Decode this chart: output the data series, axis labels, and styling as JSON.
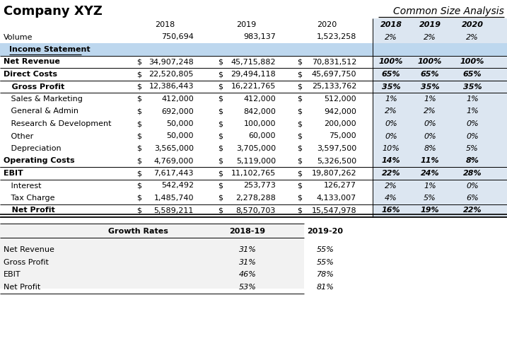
{
  "title_company": "Company XYZ",
  "title_analysis": "Common Size Analysis",
  "rows": [
    {
      "label": "Net Revenue",
      "bold": true,
      "indent": 0,
      "border_top": true,
      "border_bottom": true,
      "dollar": true,
      "v2018": "34,907,248",
      "v2019": "45,715,882",
      "v2020": "70,831,512",
      "p2018": "100%",
      "p2019": "100%",
      "p2020": "100%"
    },
    {
      "label": "Direct Costs",
      "bold": true,
      "indent": 0,
      "border_top": false,
      "border_bottom": true,
      "dollar": true,
      "v2018": "22,520,805",
      "v2019": "29,494,118",
      "v2020": "45,697,750",
      "p2018": "65%",
      "p2019": "65%",
      "p2020": "65%"
    },
    {
      "label": "   Gross Profit",
      "bold": true,
      "indent": 0,
      "border_top": true,
      "border_bottom": true,
      "dollar": true,
      "v2018": "12,386,443",
      "v2019": "16,221,765",
      "v2020": "25,133,762",
      "p2018": "35%",
      "p2019": "35%",
      "p2020": "35%"
    },
    {
      "label": "   Sales & Marketing",
      "bold": false,
      "indent": 0,
      "border_top": false,
      "border_bottom": false,
      "dollar": true,
      "v2018": "412,000",
      "v2019": "412,000",
      "v2020": "512,000",
      "p2018": "1%",
      "p2019": "1%",
      "p2020": "1%"
    },
    {
      "label": "   General & Admin",
      "bold": false,
      "indent": 0,
      "border_top": false,
      "border_bottom": false,
      "dollar": true,
      "v2018": "692,000",
      "v2019": "842,000",
      "v2020": "942,000",
      "p2018": "2%",
      "p2019": "2%",
      "p2020": "1%"
    },
    {
      "label": "   Research & Development",
      "bold": false,
      "indent": 0,
      "border_top": false,
      "border_bottom": false,
      "dollar": true,
      "v2018": "50,000",
      "v2019": "100,000",
      "v2020": "200,000",
      "p2018": "0%",
      "p2019": "0%",
      "p2020": "0%"
    },
    {
      "label": "   Other",
      "bold": false,
      "indent": 0,
      "border_top": false,
      "border_bottom": false,
      "dollar": true,
      "v2018": "50,000",
      "v2019": "60,000",
      "v2020": "75,000",
      "p2018": "0%",
      "p2019": "0%",
      "p2020": "0%"
    },
    {
      "label": "   Depreciation",
      "bold": false,
      "indent": 0,
      "border_top": false,
      "border_bottom": false,
      "dollar": true,
      "v2018": "3,565,000",
      "v2019": "3,705,000",
      "v2020": "3,597,500",
      "p2018": "10%",
      "p2019": "8%",
      "p2020": "5%"
    },
    {
      "label": "Operating Costs",
      "bold": true,
      "indent": 0,
      "border_top": false,
      "border_bottom": true,
      "dollar": true,
      "v2018": "4,769,000",
      "v2019": "5,119,000",
      "v2020": "5,326,500",
      "p2018": "14%",
      "p2019": "11%",
      "p2020": "8%"
    },
    {
      "label": "EBIT",
      "bold": true,
      "indent": 0,
      "border_top": true,
      "border_bottom": true,
      "dollar": true,
      "v2018": "7,617,443",
      "v2019": "11,102,765",
      "v2020": "19,807,262",
      "p2018": "22%",
      "p2019": "24%",
      "p2020": "28%"
    },
    {
      "label": "   Interest",
      "bold": false,
      "indent": 0,
      "border_top": false,
      "border_bottom": false,
      "dollar": true,
      "v2018": "542,492",
      "v2019": "253,773",
      "v2020": "126,277",
      "p2018": "2%",
      "p2019": "1%",
      "p2020": "0%"
    },
    {
      "label": "   Tax Charge",
      "bold": false,
      "indent": 0,
      "border_top": false,
      "border_bottom": false,
      "dollar": true,
      "v2018": "1,485,740",
      "v2019": "2,278,288",
      "v2020": "4,133,007",
      "p2018": "4%",
      "p2019": "5%",
      "p2020": "6%"
    },
    {
      "label": "   Net Profit",
      "bold": true,
      "indent": 0,
      "border_top": true,
      "border_bottom": true,
      "dollar": true,
      "v2018": "5,589,211",
      "v2019": "8,570,703",
      "v2020": "15,547,978",
      "p2018": "16%",
      "p2019": "19%",
      "p2020": "22%"
    }
  ],
  "growth_rows": [
    {
      "label": "Net Revenue",
      "g1819": "31%",
      "g1920": "55%"
    },
    {
      "label": "Gross Profit",
      "g1819": "31%",
      "g1920": "55%"
    },
    {
      "label": "EBIT",
      "g1819": "46%",
      "g1920": "78%"
    },
    {
      "label": "Net Profit",
      "g1819": "53%",
      "g1920": "81%"
    }
  ],
  "volume_vals": [
    "750,694",
    "983,137",
    "1,523,258"
  ],
  "volume_pcts": [
    "2%",
    "2%",
    "2%"
  ],
  "bg_cs": "#dce6f1",
  "bg_section": "#bdd7ee",
  "bg_growth": "#f2f2f2",
  "line_color": "#000000",
  "title_fs": 13,
  "hdr_fs": 8,
  "body_fs": 8
}
